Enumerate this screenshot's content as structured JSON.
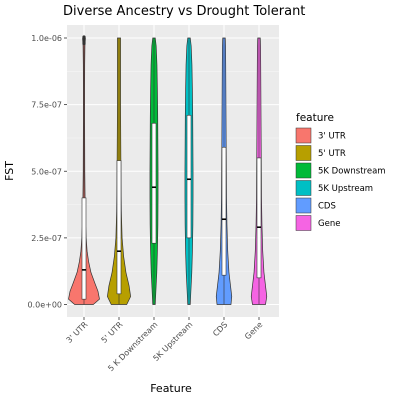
{
  "chart_data": {
    "type": "violin",
    "title": "Diverse Ancestry vs Drought Tolerant",
    "xlabel": "Feature",
    "ylabel": "FST",
    "ylim": [
      0,
      1e-06
    ],
    "yticks": [
      0,
      2.5e-07,
      5e-07,
      7.5e-07,
      1e-06
    ],
    "ytick_labels": [
      "0.0e+00",
      "2.5e-07",
      "5.0e-07",
      "7.5e-07",
      "1.0e-06"
    ],
    "categories": [
      "3' UTR",
      "5' UTR",
      "5 K Downstream",
      "5K Upstream",
      "CDS",
      "Gene"
    ],
    "colors": [
      "#F8766D",
      "#B79F00",
      "#00BA38",
      "#00BFC4",
      "#619CFF",
      "#F564E3"
    ],
    "grid": true,
    "legend": {
      "title": "feature",
      "position": "right",
      "entries": [
        "3' UTR",
        "5' UTR",
        "5K Downstream",
        "5K Upstream",
        "CDS",
        "Gene"
      ]
    },
    "series": [
      {
        "category": "3' UTR",
        "q1": 2e-08,
        "median": 1.3e-07,
        "q3": 4e-07,
        "min": 0,
        "max": 1e-06,
        "density": [
          [
            0,
            0.6
          ],
          [
            0.02,
            1.0
          ],
          [
            0.05,
            0.9
          ],
          [
            0.08,
            0.7
          ],
          [
            0.12,
            0.45
          ],
          [
            0.16,
            0.3
          ],
          [
            0.2,
            0.2
          ],
          [
            0.25,
            0.14
          ],
          [
            0.3,
            0.1
          ],
          [
            0.4,
            0.07
          ],
          [
            0.5,
            0.05
          ],
          [
            0.6,
            0.045
          ],
          [
            0.7,
            0.04
          ],
          [
            0.8,
            0.04
          ],
          [
            0.9,
            0.045
          ],
          [
            0.97,
            0.06
          ],
          [
            1.0,
            0.09
          ]
        ]
      },
      {
        "category": "5' UTR",
        "q1": 4e-08,
        "median": 2e-07,
        "q3": 5.4e-07,
        "min": 0,
        "max": 1e-06,
        "density": [
          [
            0,
            0.5
          ],
          [
            0.03,
            0.75
          ],
          [
            0.07,
            0.65
          ],
          [
            0.12,
            0.45
          ],
          [
            0.18,
            0.3
          ],
          [
            0.25,
            0.2
          ],
          [
            0.35,
            0.15
          ],
          [
            0.45,
            0.13
          ],
          [
            0.55,
            0.12
          ],
          [
            0.65,
            0.11
          ],
          [
            0.75,
            0.1
          ],
          [
            0.85,
            0.1
          ],
          [
            0.93,
            0.1
          ],
          [
            1.0,
            0.1
          ]
        ]
      },
      {
        "category": "5 K Downstream",
        "q1": 2.3e-07,
        "median": 4.4e-07,
        "q3": 6.8e-07,
        "min": 0,
        "max": 1e-06,
        "density": [
          [
            0,
            0.08
          ],
          [
            0.05,
            0.12
          ],
          [
            0.12,
            0.18
          ],
          [
            0.2,
            0.22
          ],
          [
            0.3,
            0.25
          ],
          [
            0.4,
            0.26
          ],
          [
            0.5,
            0.26
          ],
          [
            0.6,
            0.25
          ],
          [
            0.7,
            0.24
          ],
          [
            0.8,
            0.22
          ],
          [
            0.9,
            0.19
          ],
          [
            0.97,
            0.14
          ],
          [
            1.0,
            0.08
          ]
        ]
      },
      {
        "category": "5K Upstream",
        "q1": 2.5e-07,
        "median": 4.7e-07,
        "q3": 7.1e-07,
        "min": 0,
        "max": 1e-06,
        "density": [
          [
            0,
            0.08
          ],
          [
            0.05,
            0.12
          ],
          [
            0.12,
            0.18
          ],
          [
            0.2,
            0.22
          ],
          [
            0.3,
            0.25
          ],
          [
            0.4,
            0.26
          ],
          [
            0.5,
            0.26
          ],
          [
            0.6,
            0.25
          ],
          [
            0.7,
            0.24
          ],
          [
            0.8,
            0.22
          ],
          [
            0.9,
            0.19
          ],
          [
            0.97,
            0.14
          ],
          [
            1.0,
            0.08
          ]
        ]
      },
      {
        "category": "CDS",
        "q1": 1.1e-07,
        "median": 3.2e-07,
        "q3": 5.9e-07,
        "min": 0,
        "max": 1e-06,
        "density": [
          [
            0,
            0.45
          ],
          [
            0.03,
            0.5
          ],
          [
            0.07,
            0.42
          ],
          [
            0.12,
            0.32
          ],
          [
            0.2,
            0.24
          ],
          [
            0.3,
            0.19
          ],
          [
            0.4,
            0.16
          ],
          [
            0.5,
            0.15
          ],
          [
            0.6,
            0.14
          ],
          [
            0.7,
            0.13
          ],
          [
            0.8,
            0.12
          ],
          [
            0.9,
            0.11
          ],
          [
            0.97,
            0.1
          ],
          [
            1.0,
            0.08
          ]
        ]
      },
      {
        "category": "Gene",
        "q1": 1e-07,
        "median": 2.9e-07,
        "q3": 5.5e-07,
        "min": 0,
        "max": 1e-06,
        "density": [
          [
            0,
            0.42
          ],
          [
            0.03,
            0.5
          ],
          [
            0.07,
            0.42
          ],
          [
            0.12,
            0.32
          ],
          [
            0.2,
            0.24
          ],
          [
            0.3,
            0.19
          ],
          [
            0.4,
            0.16
          ],
          [
            0.5,
            0.15
          ],
          [
            0.6,
            0.14
          ],
          [
            0.7,
            0.13
          ],
          [
            0.8,
            0.12
          ],
          [
            0.9,
            0.11
          ],
          [
            0.97,
            0.1
          ],
          [
            1.0,
            0.08
          ]
        ]
      }
    ]
  }
}
